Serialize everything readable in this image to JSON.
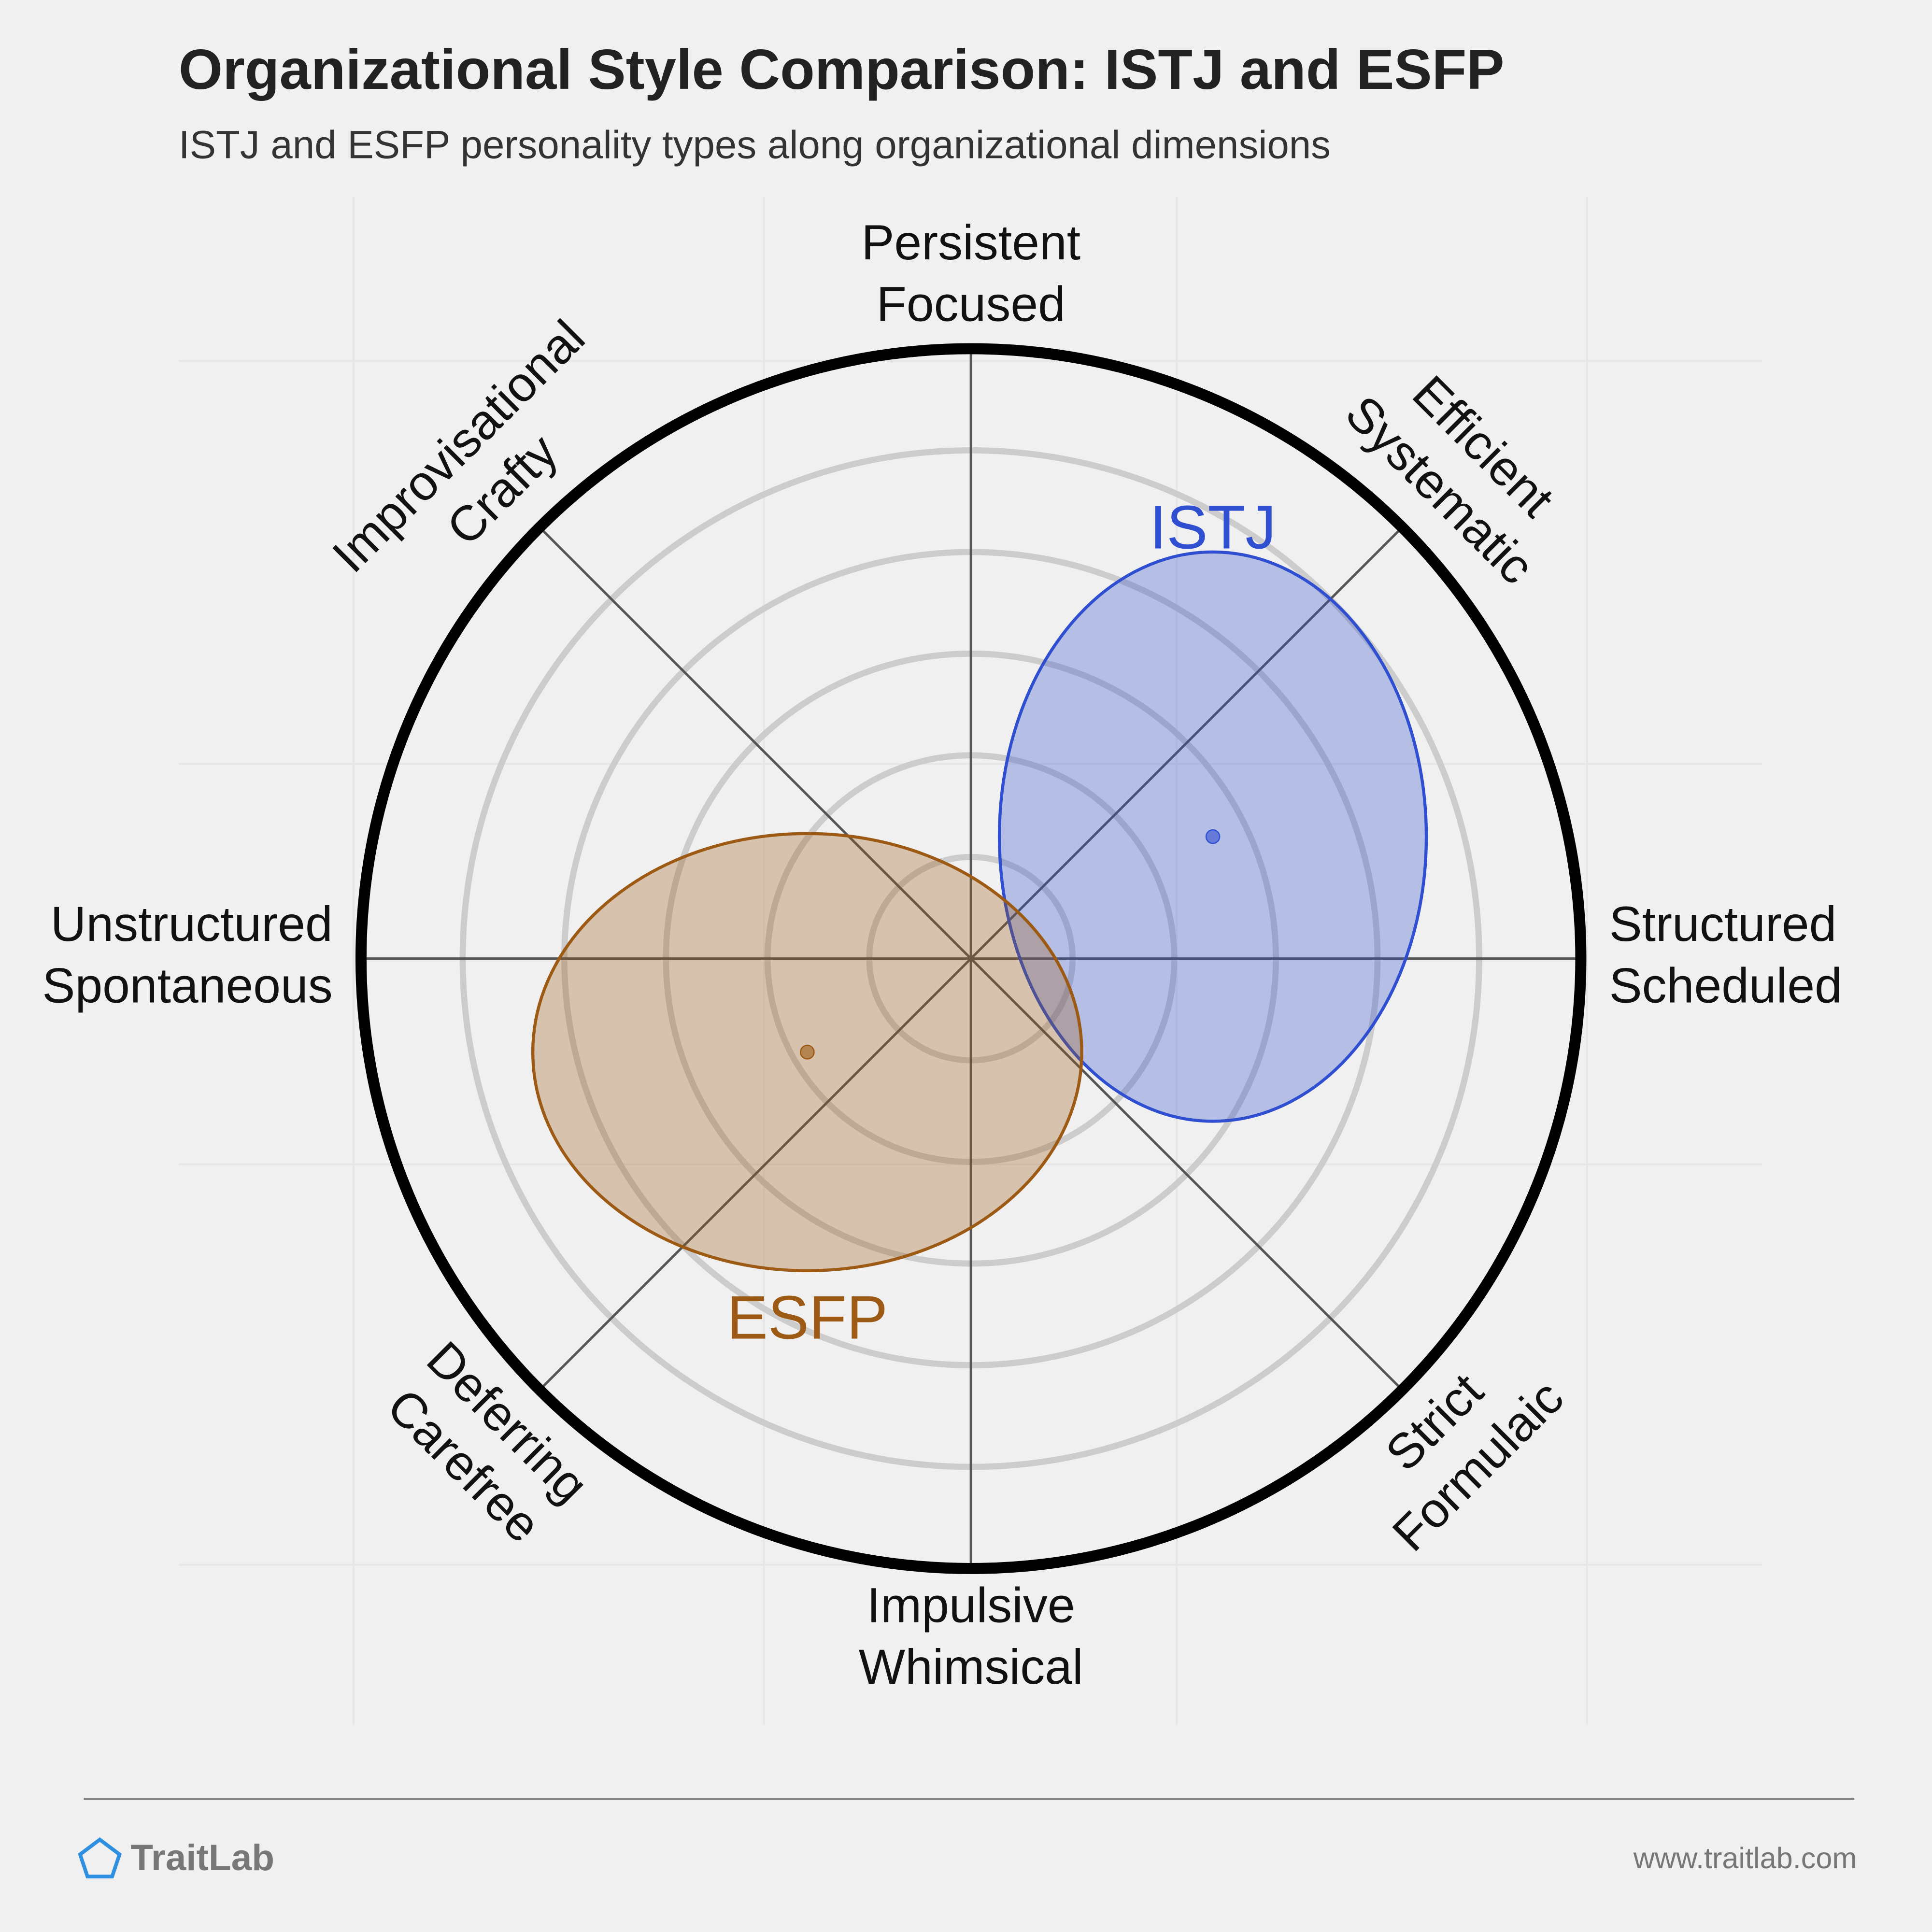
{
  "chart_data": {
    "type": "ellipse-radar",
    "title": "Organizational Style Comparison: ISTJ and ESFP",
    "subtitle": "ISTJ and ESFP personality types along organizational dimensions",
    "axes": [
      [
        "Persistent",
        "Focused"
      ],
      [
        "Efficient",
        "Systematic"
      ],
      [
        "Structured",
        "Scheduled"
      ],
      [
        "Strict",
        "Formulaic"
      ],
      [
        "Impulsive",
        "Whimsical"
      ],
      [
        "Deferring",
        "Carefree"
      ],
      [
        "Unstructured",
        "Spontaneous"
      ],
      [
        "Improvisational",
        "Crafty"
      ]
    ],
    "rlim": [
      0,
      6
    ],
    "rticks": [
      1,
      2,
      3,
      4,
      5
    ],
    "series": [
      {
        "name": "ISTJ",
        "color": "#2f4fd0",
        "center": [
          2.38,
          1.2
        ],
        "radius": [
          2.1,
          2.8
        ]
      },
      {
        "name": "ESFP",
        "color": "#9c5a14",
        "center": [
          -1.61,
          -0.92
        ],
        "radius": [
          2.7,
          2.15
        ]
      }
    ]
  },
  "footer": {
    "brand": "TraitLab",
    "url": "www.traitlab.com"
  }
}
